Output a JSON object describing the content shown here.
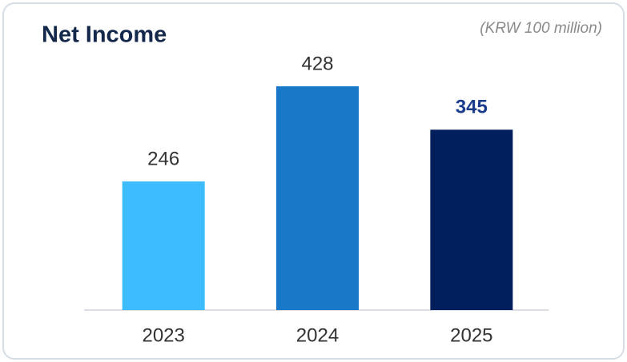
{
  "chart_data": {
    "type": "bar",
    "title": "Net Income",
    "subtitle": "(KRW 100 million)",
    "categories": [
      "2023",
      "2024",
      "2025"
    ],
    "values": [
      246,
      428,
      345
    ],
    "colors": [
      "#3dbcff",
      "#1a78c8",
      "#001f5c"
    ]
  }
}
